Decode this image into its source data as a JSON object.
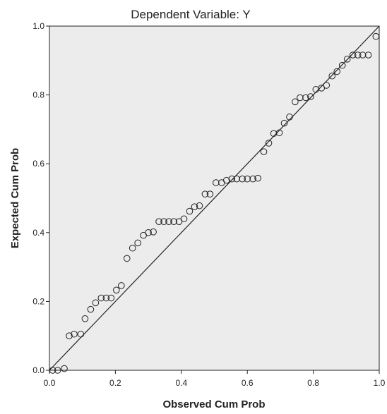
{
  "chart_data": {
    "type": "scatter",
    "title": "Dependent Variable: Y",
    "xlabel": "Observed Cum Prob",
    "ylabel": "Expected Cum Prob",
    "xlim": [
      0.0,
      1.0
    ],
    "ylim": [
      0.0,
      1.0
    ],
    "xticks": [
      "0.0",
      "0.2",
      "0.4",
      "0.6",
      "0.8",
      "1.0"
    ],
    "yticks": [
      "0.0",
      "0.2",
      "0.4",
      "0.6",
      "0.8",
      "1.0"
    ],
    "grid": false,
    "reference_line": {
      "from": [
        0,
        0
      ],
      "to": [
        1,
        1
      ]
    },
    "colors": {
      "plot_background": "#ececec",
      "frame": "#222222",
      "marker_edge": "#222222"
    },
    "points": [
      [
        0.01,
        0.0
      ],
      [
        0.025,
        0.0
      ],
      [
        0.045,
        0.005
      ],
      [
        0.06,
        0.1
      ],
      [
        0.075,
        0.105
      ],
      [
        0.095,
        0.105
      ],
      [
        0.108,
        0.15
      ],
      [
        0.125,
        0.177
      ],
      [
        0.14,
        0.196
      ],
      [
        0.157,
        0.21
      ],
      [
        0.172,
        0.21
      ],
      [
        0.187,
        0.21
      ],
      [
        0.203,
        0.233
      ],
      [
        0.218,
        0.246
      ],
      [
        0.235,
        0.325
      ],
      [
        0.252,
        0.355
      ],
      [
        0.268,
        0.37
      ],
      [
        0.285,
        0.392
      ],
      [
        0.3,
        0.4
      ],
      [
        0.315,
        0.402
      ],
      [
        0.332,
        0.432
      ],
      [
        0.347,
        0.432
      ],
      [
        0.362,
        0.432
      ],
      [
        0.377,
        0.432
      ],
      [
        0.393,
        0.432
      ],
      [
        0.408,
        0.44
      ],
      [
        0.425,
        0.462
      ],
      [
        0.44,
        0.475
      ],
      [
        0.455,
        0.478
      ],
      [
        0.472,
        0.512
      ],
      [
        0.487,
        0.512
      ],
      [
        0.505,
        0.545
      ],
      [
        0.522,
        0.545
      ],
      [
        0.537,
        0.552
      ],
      [
        0.553,
        0.556
      ],
      [
        0.568,
        0.556
      ],
      [
        0.585,
        0.556
      ],
      [
        0.6,
        0.556
      ],
      [
        0.617,
        0.556
      ],
      [
        0.632,
        0.558
      ],
      [
        0.65,
        0.635
      ],
      [
        0.665,
        0.66
      ],
      [
        0.68,
        0.688
      ],
      [
        0.697,
        0.69
      ],
      [
        0.712,
        0.718
      ],
      [
        0.728,
        0.736
      ],
      [
        0.745,
        0.78
      ],
      [
        0.76,
        0.792
      ],
      [
        0.777,
        0.792
      ],
      [
        0.792,
        0.795
      ],
      [
        0.808,
        0.816
      ],
      [
        0.825,
        0.82
      ],
      [
        0.84,
        0.828
      ],
      [
        0.857,
        0.855
      ],
      [
        0.872,
        0.868
      ],
      [
        0.888,
        0.886
      ],
      [
        0.903,
        0.904
      ],
      [
        0.92,
        0.916
      ],
      [
        0.935,
        0.916
      ],
      [
        0.95,
        0.916
      ],
      [
        0.967,
        0.916
      ],
      [
        0.99,
        0.97
      ]
    ]
  }
}
